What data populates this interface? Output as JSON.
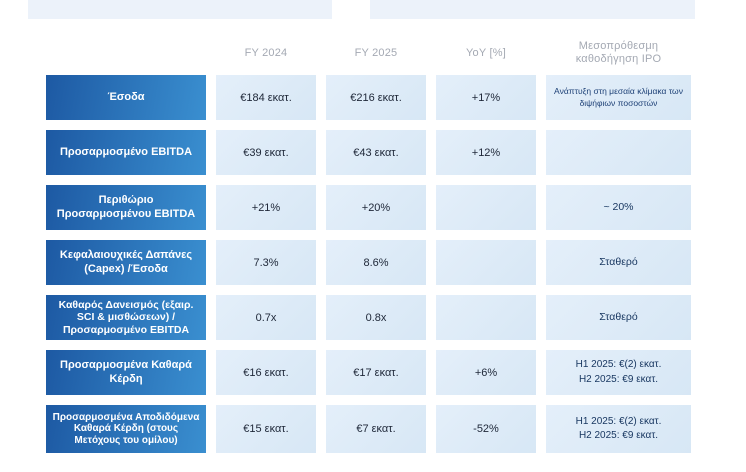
{
  "header": {
    "columns": {
      "fy2024": "FY 2024",
      "fy2025": "FY 2025",
      "yoy": "YoY [%]",
      "guidance": "Μεσοπρόθεσμη καθοδήγηση IPO"
    }
  },
  "table": {
    "rows": [
      {
        "label": "Έσοδα",
        "fy2024": "€184 εκατ.",
        "fy2025": "€216 εκατ.",
        "yoy": "+17%",
        "guidance": "Ανάπτυξη στη μεσαία κλίμακα των διψήφιων ποσοστών"
      },
      {
        "label": "Προσαρμοσμένο EBITDA",
        "fy2024": "€39 εκατ.",
        "fy2025": "€43 εκατ.",
        "yoy": "+12%",
        "guidance": ""
      },
      {
        "label": "Περιθώριο Προσαρμοσμένου EBITDA",
        "fy2024": "+21%",
        "fy2025": "+20%",
        "yoy": "",
        "guidance": "~ 20%"
      },
      {
        "label": "Κεφαλαιουχικές Δαπάνες (Capex) /Έσοδα",
        "fy2024": "7.3%",
        "fy2025": "8.6%",
        "yoy": "",
        "guidance": "Σταθερό"
      },
      {
        "label": "Καθαρός Δανεισμός (εξαιρ. SCI & μισθώσεων) / Προσαρμοσμένο EBITDA",
        "fy2024": "0.7x",
        "fy2025": "0.8x",
        "yoy": "",
        "guidance": "Σταθερό"
      },
      {
        "label": "Προσαρμοσμένα Καθαρά Κέρδη",
        "fy2024": "€16 εκατ.",
        "fy2025": "€17 εκατ.",
        "yoy": "+6%",
        "guidance": "H1 2025: €(2) εκατ.\nH2 2025: €9 εκατ."
      },
      {
        "label": "Προσαρμοσμένα Αποδιδόμενα Καθαρά Κέρδη (στους Μετόχους του ομίλου)",
        "fy2024": "€15 εκατ.",
        "fy2025": "€7 εκατ.",
        "yoy": "-52%",
        "guidance": "H1 2025: €(2) εκατ.\nH2 2025: €9 εκατ."
      }
    ]
  },
  "colors": {
    "accent_bar": "#ecf2fa",
    "label_gradient_start": "#1d59a3",
    "label_gradient_end": "#3a8fd0",
    "cell_background": "#dcebf7",
    "value_text": "#20293a",
    "guidance_text": "#16355f",
    "header_text": "#a4a9b3"
  },
  "chart_data": {
    "type": "table",
    "columns": [
      "",
      "FY 2024",
      "FY 2025",
      "YoY [%]",
      "Μεσοπρόθεσμη καθοδήγηση IPO"
    ],
    "rows": [
      [
        "Έσοδα",
        "€184 εκατ.",
        "€216 εκατ.",
        "+17%",
        "Ανάπτυξη στη μεσαία κλίμακα των διψήφιων ποσοστών"
      ],
      [
        "Προσαρμοσμένο EBITDA",
        "€39 εκατ.",
        "€43 εκατ.",
        "+12%",
        ""
      ],
      [
        "Περιθώριο Προσαρμοσμένου EBITDA",
        "+21%",
        "+20%",
        "",
        "~ 20%"
      ],
      [
        "Κεφαλαιουχικές Δαπάνες (Capex) /Έσοδα",
        "7.3%",
        "8.6%",
        "",
        "Σταθερό"
      ],
      [
        "Καθαρός Δανεισμός (εξαιρ. SCI & μισθώσεων) / Προσαρμοσμένο EBITDA",
        "0.7x",
        "0.8x",
        "",
        "Σταθερό"
      ],
      [
        "Προσαρμοσμένα Καθαρά Κέρδη",
        "€16 εκατ.",
        "€17 εκατ.",
        "+6%",
        "H1 2025: €(2) εκατ. H2 2025: €9 εκατ."
      ],
      [
        "Προσαρμοσμένα Αποδιδόμενα Καθαρά Κέρδη (στους Μετόχους του ομίλου)",
        "€15 εκατ.",
        "€7 εκατ.",
        "-52%",
        "H1 2025: €(2) εκατ. H2 2025: €9 εκατ."
      ]
    ]
  }
}
